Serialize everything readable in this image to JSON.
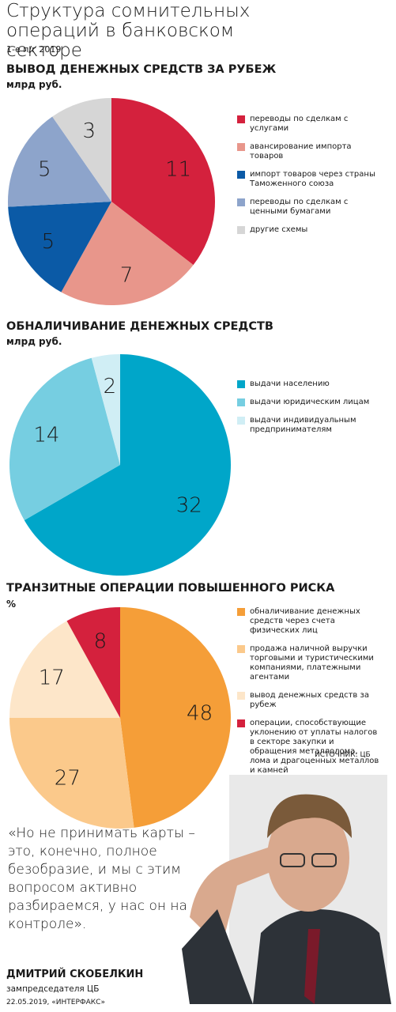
{
  "header": {
    "title": "Структура сомнительных операций в банковском секторе",
    "subtitle": "1-е п/г 2019"
  },
  "chart_data": [
    {
      "type": "pie",
      "title": "ВЫВОД ДЕНЕЖНЫХ СРЕДСТВ ЗА РУБЕЖ",
      "unit": "млрд руб.",
      "categories": [
        "переводы по сделкам с услугами",
        "авансирование импорта товаров",
        "импорт товаров через страны Таможенного союза",
        "переводы по сделкам с ценными бумагами",
        "другие схемы"
      ],
      "values": [
        11,
        7,
        5,
        5,
        3
      ],
      "colors": [
        "#d4213d",
        "#e8968b",
        "#0b5aa6",
        "#8da4cb",
        "#d6d6d6"
      ]
    },
    {
      "type": "pie",
      "title": "ОБНАЛИЧИВАНИЕ ДЕНЕЖНЫХ СРЕДСТВ",
      "unit": "млрд руб.",
      "categories": [
        "выдачи населению",
        "выдачи юридическим лицам",
        "выдачи индивидуальным предпринимателям"
      ],
      "values": [
        32,
        14,
        2
      ],
      "colors": [
        "#00a6c9",
        "#76cee1",
        "#d0eef5"
      ]
    },
    {
      "type": "pie",
      "title": "ТРАНЗИТНЫЕ ОПЕРАЦИИ ПОВЫШЕННОГО РИСКА",
      "unit": "%",
      "categories": [
        "обналичивание денежных средств через счета физических лиц",
        "продажа наличной выручки торговыми и туристическими компаниями, платежными агентами",
        "вывод денежных средств за рубеж",
        "операции, способствующие уклонению от уплаты налогов в секторе закупки и обращения металлолома, лома и драгоценных металлов и камней"
      ],
      "values": [
        48,
        27,
        17,
        8
      ],
      "colors": [
        "#f59e38",
        "#fbc98b",
        "#fde6c9",
        "#d4213d"
      ]
    }
  ],
  "source": "ИСТОЧНИК: ЦБ",
  "quote": "«Но не принимать карты – это, конечно, полное безобразие, и мы с этим вопросом активно разбираемся, у нас он на контроле».",
  "person": {
    "name": "ДМИТРИЙ СКОБЕЛКИН",
    "role": "зампредседателя ЦБ"
  },
  "footer": "22.05.2019, «ИНТЕРФАКС»"
}
